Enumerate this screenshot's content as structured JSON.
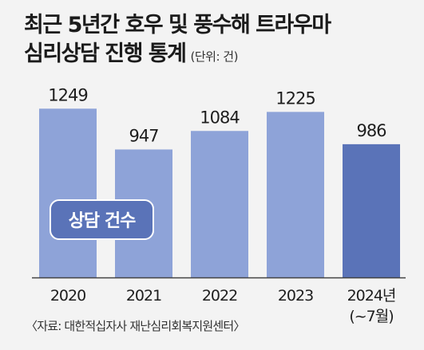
{
  "title_line1": "최근 5년간 호우 및 풍수해 트라우마",
  "title_line2": "심리상담 진행 통계",
  "unit": "(단위: 건)",
  "source": "〈자료: 대한적십자사 재난심리회복지원센터〉",
  "colors": {
    "bar": "#8ea3d8",
    "bar_highlight": "#5a73b8",
    "legend_bg": "#5a73b8",
    "legend_text": "#ffffff",
    "baseline": "#444444"
  },
  "chart_data": {
    "type": "bar",
    "categories": [
      "2020",
      "2021",
      "2022",
      "2023",
      "2024년"
    ],
    "category_sublabels": [
      "",
      "",
      "",
      "",
      "(~7월)"
    ],
    "series": [
      {
        "name": "상담 건수",
        "values": [
          1249,
          947,
          1084,
          1225,
          986
        ]
      }
    ],
    "data_labels": [
      "1249",
      "947",
      "1084",
      "1225",
      "986"
    ],
    "highlight_index": 4,
    "ylim": [
      0,
      1300
    ],
    "grid": false,
    "legend_position": "inside-left"
  }
}
